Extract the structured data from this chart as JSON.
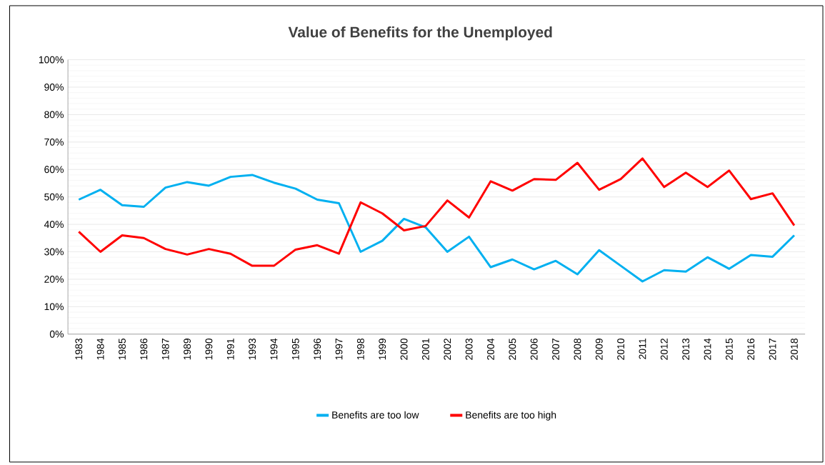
{
  "chart_data": {
    "type": "line",
    "title": "Value of Benefits for the Unemployed",
    "categories": [
      "1983",
      "1984",
      "1985",
      "1986",
      "1987",
      "1989",
      "1990",
      "1991",
      "1993",
      "1994",
      "1995",
      "1996",
      "1997",
      "1998",
      "1999",
      "2000",
      "2001",
      "2002",
      "2003",
      "2004",
      "2005",
      "2006",
      "2007",
      "2008",
      "2009",
      "2010",
      "2011",
      "2012",
      "2013",
      "2014",
      "2015",
      "2016",
      "2017",
      "2018"
    ],
    "series": [
      {
        "name": "Benefits are too low",
        "color": "#00b0f0",
        "values": [
          49,
          52.6,
          47,
          46.4,
          53.4,
          55.4,
          54.1,
          57.3,
          58,
          55.2,
          53,
          49,
          47.7,
          30,
          34,
          42,
          38.9,
          30,
          35.5,
          24.4,
          27.2,
          23.6,
          26.7,
          21.8,
          30.6,
          24.9,
          19.2,
          23.3,
          22.8,
          28,
          23.8,
          28.8,
          28.2,
          36
        ]
      },
      {
        "name": "Benefits are too high",
        "color": "#ff0000",
        "values": [
          37.3,
          30,
          36,
          35,
          31,
          29,
          31,
          29.3,
          24.9,
          24.9,
          30.8,
          32.4,
          29.3,
          48,
          44,
          37.8,
          39.4,
          48.7,
          42.5,
          55.7,
          52.3,
          56.5,
          56.2,
          62.4,
          52.6,
          56.5,
          64,
          53.6,
          58.8,
          53.6,
          59.6,
          49.2,
          51.3,
          39.6
        ]
      }
    ],
    "ylim": [
      0,
      100
    ],
    "yticks": [
      {
        "value": 0,
        "label": "0%"
      },
      {
        "value": 10,
        "label": "10%"
      },
      {
        "value": 20,
        "label": "20%"
      },
      {
        "value": 30,
        "label": "30%"
      },
      {
        "value": 40,
        "label": "40%"
      },
      {
        "value": 50,
        "label": "50%"
      },
      {
        "value": 60,
        "label": "60%"
      },
      {
        "value": 70,
        "label": "70%"
      },
      {
        "value": 80,
        "label": "80%"
      },
      {
        "value": 90,
        "label": "90%"
      },
      {
        "value": 100,
        "label": "100%"
      }
    ],
    "grid": "y",
    "legend": "bottom",
    "marker": "none",
    "line_style": "solid"
  }
}
